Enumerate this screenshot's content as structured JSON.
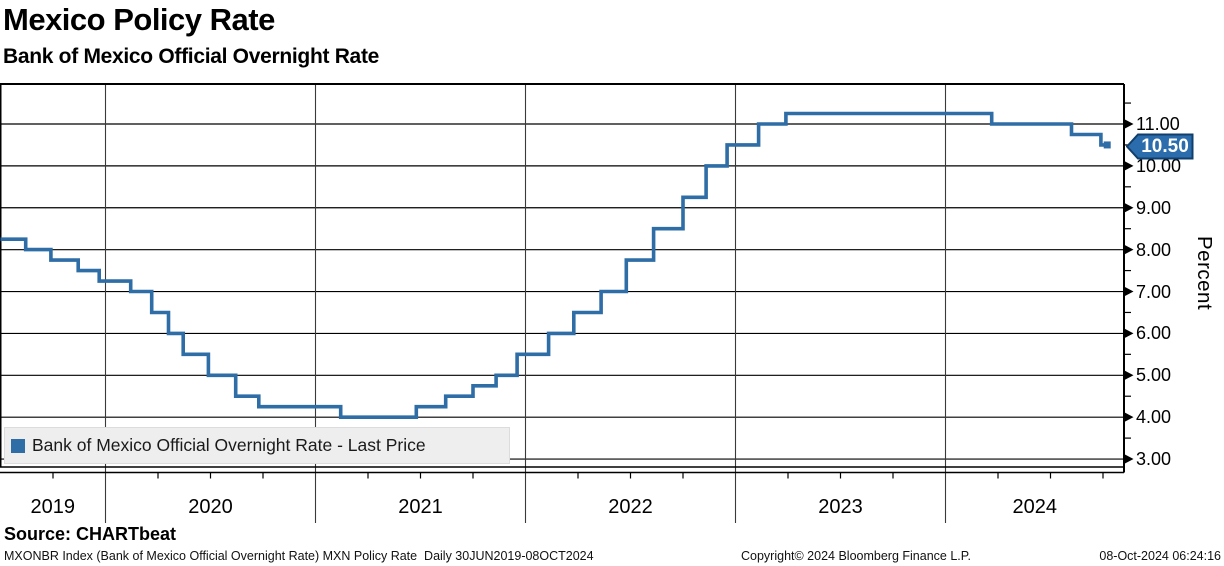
{
  "header": {
    "title": "Mexico Policy Rate",
    "subtitle": "Bank of Mexico Official Overnight Rate"
  },
  "legend": {
    "label": "Bank of Mexico Official Overnight Rate - Last Price"
  },
  "source": {
    "label": "Source: CHARTbeat"
  },
  "footer": {
    "left": "MXONBR Index (Bank of Mexico Official Overnight Rate) MXN Policy Rate  Daily 30JUN2019-08OCT2024",
    "center": "Copyright© 2024 Bloomberg Finance L.P.",
    "right": "08-Oct-2024 06:24:16"
  },
  "colors": {
    "line": "#2e6da6",
    "badge_fill": "#2b6cac",
    "badge_border": "#123e6b",
    "badge_text": "#ffffff",
    "legend_bg": "#eeeeee",
    "grid_h": "#000000",
    "grid_v": "#3a3a3a",
    "frame": "#000000"
  },
  "chart_data": {
    "type": "line",
    "step": true,
    "title": "Mexico Policy Rate",
    "subtitle": "Bank of Mexico Official Overnight Rate",
    "xlabel": "",
    "ylabel": "Percent",
    "grid": true,
    "legend_position": "bottom-left",
    "x_axis": {
      "unit": "year",
      "start": 2019.5,
      "end": 2024.85,
      "minor_tick": 0.25,
      "year_labels": [
        "2019",
        "2020",
        "2021",
        "2022",
        "2023",
        "2024"
      ],
      "year_values": [
        2019,
        2020,
        2021,
        2022,
        2023,
        2024
      ]
    },
    "y_axis": {
      "display_top": 11.98,
      "display_bottom": 2.8,
      "minor_step": 0.5,
      "major_ticks": [
        {
          "value": 11,
          "label": "11.00"
        },
        {
          "value": 10,
          "label": "10.00"
        },
        {
          "value": 9,
          "label": "9.00"
        },
        {
          "value": 8,
          "label": "8.00"
        },
        {
          "value": 7,
          "label": "7.00"
        },
        {
          "value": 6,
          "label": "6.00"
        },
        {
          "value": 5,
          "label": "5.00"
        },
        {
          "value": 4,
          "label": "4.00"
        },
        {
          "value": 3,
          "label": "3.00"
        }
      ]
    },
    "last_price": {
      "value": 10.5,
      "label": "10.50"
    },
    "series": [
      {
        "name": "Bank of Mexico Official Overnight Rate - Last Price",
        "color": "#2e6da6",
        "points": [
          {
            "date": "2019-06-30",
            "x": 2019.5,
            "rate": 8.25
          },
          {
            "date": "2019-08-16",
            "x": 2019.62,
            "rate": 8.0
          },
          {
            "date": "2019-09-27",
            "x": 2019.74,
            "rate": 7.75
          },
          {
            "date": "2019-11-15",
            "x": 2019.87,
            "rate": 7.5
          },
          {
            "date": "2019-12-20",
            "x": 2019.97,
            "rate": 7.25
          },
          {
            "date": "2020-02-14",
            "x": 2020.12,
            "rate": 7.0
          },
          {
            "date": "2020-03-21",
            "x": 2020.22,
            "rate": 6.5
          },
          {
            "date": "2020-04-21",
            "x": 2020.3,
            "rate": 6.0
          },
          {
            "date": "2020-05-15",
            "x": 2020.37,
            "rate": 5.5
          },
          {
            "date": "2020-06-26",
            "x": 2020.49,
            "rate": 5.0
          },
          {
            "date": "2020-08-14",
            "x": 2020.62,
            "rate": 4.5
          },
          {
            "date": "2020-09-25",
            "x": 2020.73,
            "rate": 4.25
          },
          {
            "date": "2021-02-12",
            "x": 2021.12,
            "rate": 4.0
          },
          {
            "date": "2021-06-25",
            "x": 2021.48,
            "rate": 4.25
          },
          {
            "date": "2021-08-13",
            "x": 2021.62,
            "rate": 4.5
          },
          {
            "date": "2021-09-30",
            "x": 2021.75,
            "rate": 4.75
          },
          {
            "date": "2021-11-12",
            "x": 2021.86,
            "rate": 5.0
          },
          {
            "date": "2021-12-17",
            "x": 2021.96,
            "rate": 5.5
          },
          {
            "date": "2022-02-10",
            "x": 2022.11,
            "rate": 6.0
          },
          {
            "date": "2022-03-24",
            "x": 2022.23,
            "rate": 6.5
          },
          {
            "date": "2022-05-12",
            "x": 2022.36,
            "rate": 7.0
          },
          {
            "date": "2022-06-23",
            "x": 2022.48,
            "rate": 7.75
          },
          {
            "date": "2022-08-11",
            "x": 2022.61,
            "rate": 8.5
          },
          {
            "date": "2022-09-29",
            "x": 2022.75,
            "rate": 9.25
          },
          {
            "date": "2022-11-10",
            "x": 2022.86,
            "rate": 10.0
          },
          {
            "date": "2022-12-15",
            "x": 2022.96,
            "rate": 10.5
          },
          {
            "date": "2023-02-09",
            "x": 2023.11,
            "rate": 11.0
          },
          {
            "date": "2023-03-30",
            "x": 2023.24,
            "rate": 11.25
          },
          {
            "date": "2024-03-21",
            "x": 2024.22,
            "rate": 11.0
          },
          {
            "date": "2024-08-08",
            "x": 2024.6,
            "rate": 10.75
          },
          {
            "date": "2024-09-26",
            "x": 2024.74,
            "rate": 10.5
          },
          {
            "date": "2024-10-08",
            "x": 2024.77,
            "rate": 10.5
          }
        ]
      }
    ]
  }
}
